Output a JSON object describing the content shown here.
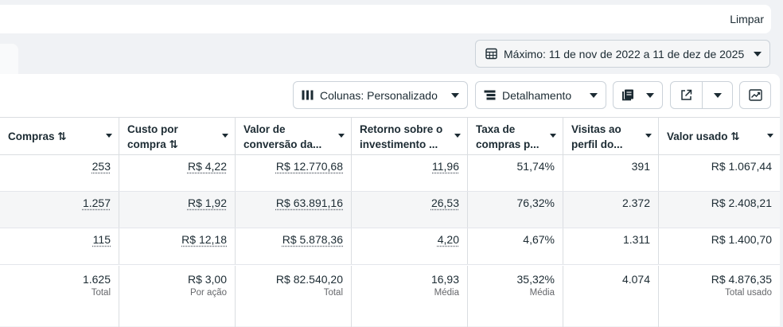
{
  "topbar": {
    "clear_label": "Limpar"
  },
  "date_range": {
    "label": "Máximo: 11 de nov de 2022 a 11 de dez de 2025",
    "icon": "calendar-icon"
  },
  "toolbar": {
    "columns_label": "Colunas: Personalizado",
    "breakdown_label": "Detalhamento",
    "reports_icon": "reports-icon",
    "export_icon": "export-icon",
    "chart_icon": "chart-icon"
  },
  "table": {
    "headers": [
      {
        "line1": "Compras ⇅",
        "line2": ""
      },
      {
        "line1": "Custo por",
        "line2": "compra ⇅"
      },
      {
        "line1": "Valor de",
        "line2": "conversão da..."
      },
      {
        "line1": "Retorno sobre o",
        "line2": "investimento ..."
      },
      {
        "line1": "Taxa de",
        "line2": "compras p..."
      },
      {
        "line1": "Visitas ao",
        "line2": "perfil do..."
      },
      {
        "line1": "Valor usado ⇅",
        "line2": ""
      }
    ],
    "rows": [
      [
        "253",
        "R$ 4,22",
        "R$ 12.770,68",
        "11,96",
        "51,74%",
        "391",
        "R$ 1.067,44"
      ],
      [
        "1.257",
        "R$ 1,92",
        "R$ 63.891,16",
        "26,53",
        "76,32%",
        "2.372",
        "R$ 2.408,21"
      ],
      [
        "115",
        "R$ 12,18",
        "R$ 5.878,36",
        "4,20",
        "4,67%",
        "1.311",
        "R$ 1.400,70"
      ]
    ],
    "totals": [
      {
        "value": "1.625",
        "label": "Total"
      },
      {
        "value": "R$ 3,00",
        "label": "Por ação"
      },
      {
        "value": "R$ 82.540,20",
        "label": "Total"
      },
      {
        "value": "16,93",
        "label": "Média"
      },
      {
        "value": "35,32%",
        "label": "Média"
      },
      {
        "value": "4.074",
        "label": ""
      },
      {
        "value": "R$ 4.876,35",
        "label": "Total usado"
      }
    ]
  }
}
